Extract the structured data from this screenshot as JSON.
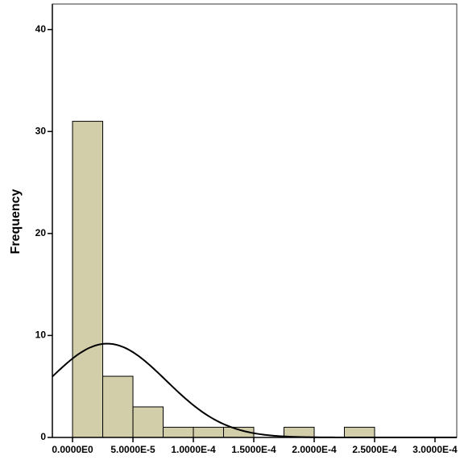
{
  "chart_data": {
    "type": "histogram",
    "y_label": "Frequency",
    "bins": [
      0,
      2.5e-05,
      5e-05,
      7.5e-05,
      0.0001,
      0.000125,
      0.00015,
      0.000175,
      0.0002,
      0.000225,
      0.00025
    ],
    "values": [
      31,
      6,
      3,
      1,
      1,
      1,
      0,
      1,
      0,
      1
    ],
    "color": "#d3ceaa",
    "xlim": [
      -1.67e-05,
      0.000318
    ],
    "ylim": [
      0,
      42.5
    ],
    "xticks": [
      {
        "value": 0,
        "label": "0.0000E0"
      },
      {
        "value": 5e-05,
        "label": "5.0000E-5"
      },
      {
        "value": 0.0001,
        "label": "1.0000E-4"
      },
      {
        "value": 0.00015,
        "label": "1.5000E-4"
      },
      {
        "value": 0.0002,
        "label": "2.0000E-4"
      },
      {
        "value": 0.00025,
        "label": "2.5000E-4"
      },
      {
        "value": 0.0003,
        "label": "3.0000E-4"
      }
    ],
    "yticks": [
      0,
      10,
      20,
      30,
      40
    ],
    "curve": {
      "mean": 2.87e-05,
      "std": 4.88e-05
    }
  }
}
